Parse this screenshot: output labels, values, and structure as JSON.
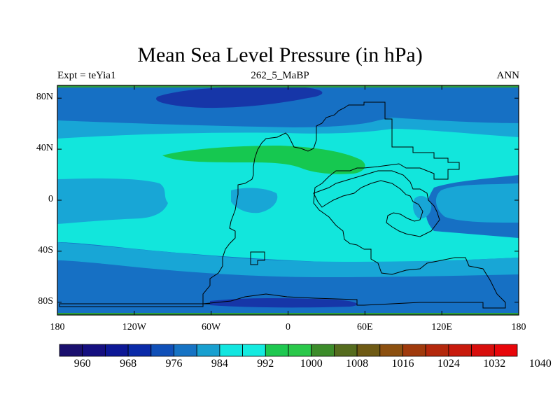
{
  "title": "Mean Sea Level Pressure (in hPa)",
  "subtitle_left": "Expt = teYia1",
  "subtitle_center": "262_5_MaBP",
  "subtitle_right": "ANN",
  "map": {
    "projection": "cylindrical-equidistant",
    "lon_range": [
      -180,
      180
    ],
    "lat_range": [
      -90,
      90
    ],
    "y_ticks": [
      {
        "lat": 80,
        "label": "80N"
      },
      {
        "lat": 40,
        "label": "40N"
      },
      {
        "lat": 0,
        "label": "0"
      },
      {
        "lat": -40,
        "label": "40S"
      },
      {
        "lat": -80,
        "label": "80S"
      }
    ],
    "x_ticks": [
      {
        "lon": -180,
        "label": "180"
      },
      {
        "lon": -120,
        "label": "120W"
      },
      {
        "lon": -60,
        "label": "60W"
      },
      {
        "lon": 0,
        "label": "0"
      },
      {
        "lon": 60,
        "label": "60E"
      },
      {
        "lon": 120,
        "label": "120E"
      },
      {
        "lon": 180,
        "label": "180"
      }
    ]
  },
  "colorbar": {
    "colors": [
      "#1a0f6e",
      "#150f80",
      "#0d1896",
      "#0a2aa8",
      "#1050b8",
      "#1673c4",
      "#18a0d0",
      "#12e6e0",
      "#14ebe0",
      "#1ec850",
      "#2ac84a",
      "#3c8c2a",
      "#556c1e",
      "#6e5a14",
      "#8c5010",
      "#a03a0c",
      "#b4280c",
      "#c81a0c",
      "#d80e0c",
      "#e8060a"
    ],
    "labels": [
      "960",
      "968",
      "976",
      "984",
      "992",
      "1000",
      "1008",
      "1016",
      "1024",
      "1032",
      "1040"
    ],
    "label_positions": [
      1,
      3,
      5,
      7,
      9,
      11,
      13,
      15,
      17,
      19,
      21
    ]
  },
  "field_colors": {
    "deep_low": "#1636a8",
    "low": "#1670c4",
    "mid_low": "#18a6d6",
    "mid": "#12e6dc",
    "high": "#16c850",
    "edge": "#2c9c3c"
  }
}
